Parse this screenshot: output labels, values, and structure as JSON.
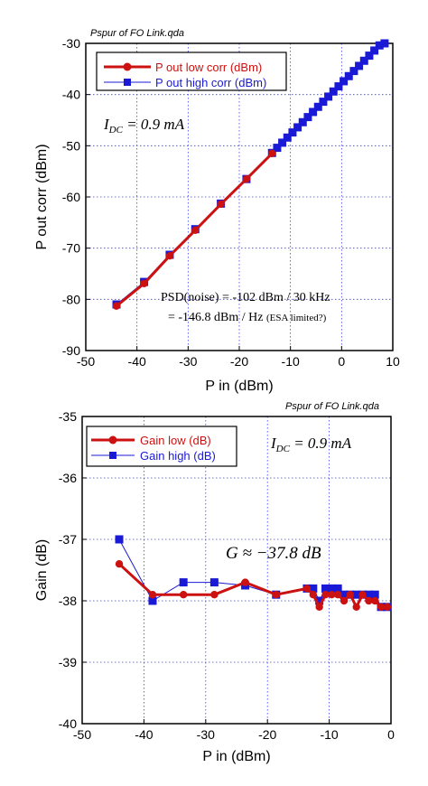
{
  "colors": {
    "low": "#cc1111",
    "high": "#1a1ad6",
    "grid": "#3a3aff"
  },
  "chart_data": [
    {
      "type": "line",
      "file_label": "Pspur of FO Link.qda",
      "xlabel": "P in (dBm)",
      "ylabel": "P out corr (dBm)",
      "xlim": [
        -50,
        10
      ],
      "ylim": [
        -90,
        -30
      ],
      "xticks": [
        -50,
        -40,
        -30,
        -20,
        -10,
        0,
        10
      ],
      "yticks": [
        -90,
        -80,
        -70,
        -60,
        -50,
        -40,
        -30
      ],
      "grid": true,
      "legend_position": "top-left",
      "series": [
        {
          "name": "P out low corr (dBm)",
          "color": "#cc1111",
          "marker": "circle",
          "x": [
            -44,
            -38.6,
            -33.6,
            -28.6,
            -23.6,
            -18.6,
            -13.6
          ],
          "y": [
            -81.3,
            -76.9,
            -71.5,
            -66.5,
            -61.4,
            -56.5,
            -51.5
          ]
        },
        {
          "name": "P out high corr (dBm)",
          "color": "#1a1ad6",
          "marker": "square",
          "x": [
            -44,
            -38.6,
            -33.6,
            -28.6,
            -23.6,
            -18.6,
            -13.6,
            -12.6,
            -11.6,
            -10.6,
            -9.6,
            -8.6,
            -7.6,
            -6.6,
            -5.6,
            -4.6,
            -3.6,
            -2.6,
            -1.6,
            -0.6,
            0.4,
            1.4,
            2.4,
            3.4,
            4.4,
            5.4,
            6.4,
            7.4,
            8.4
          ],
          "y": [
            -81.0,
            -76.6,
            -71.3,
            -66.3,
            -61.3,
            -56.5,
            -51.4,
            -50.4,
            -49.4,
            -48.4,
            -47.4,
            -46.4,
            -45.4,
            -44.4,
            -43.4,
            -42.4,
            -41.4,
            -40.4,
            -39.4,
            -38.4,
            -37.4,
            -36.4,
            -35.4,
            -34.4,
            -33.4,
            -32.4,
            -31.4,
            -30.4,
            -30.0
          ]
        }
      ],
      "annotations": {
        "idc_main": "I",
        "idc_sub": "DC",
        "idc_rest": " = 0.9  mA",
        "psd_line1": "PSD(noise) = -102 dBm / 30 kHz",
        "psd_line2_main": "= -146.8 dBm / Hz ",
        "psd_line2_note": "(ESA limited?)"
      }
    },
    {
      "type": "line",
      "file_label": "Pspur of FO Link.qda",
      "xlabel": "P in (dBm)",
      "ylabel": "Gain (dB)",
      "xlim": [
        -50,
        0
      ],
      "ylim": [
        -40,
        -35
      ],
      "xticks": [
        -50,
        -40,
        -30,
        -20,
        -10,
        0
      ],
      "yticks": [
        -40,
        -39,
        -38,
        -37,
        -36,
        -35
      ],
      "grid": true,
      "legend_position": "top-left",
      "series": [
        {
          "name": "Gain low (dB)",
          "color": "#cc1111",
          "marker": "circle",
          "x": [
            -44,
            -38.6,
            -33.6,
            -28.6,
            -23.6,
            -18.6,
            -13.6,
            -12.6,
            -11.6,
            -10.6,
            -9.6,
            -8.6,
            -7.6,
            -6.6,
            -5.6,
            -4.6,
            -3.6,
            -2.6,
            -1.6,
            -0.6
          ],
          "y": [
            -37.4,
            -37.9,
            -37.9,
            -37.9,
            -37.7,
            -37.9,
            -37.8,
            -37.9,
            -38.1,
            -37.9,
            -37.9,
            -37.9,
            -38.0,
            -37.9,
            -38.1,
            -37.9,
            -38.0,
            -38.0,
            -38.1,
            -38.1
          ]
        },
        {
          "name": "Gain high (dB)",
          "color": "#1a1ad6",
          "marker": "square",
          "x": [
            -44,
            -38.6,
            -33.6,
            -28.6,
            -23.6,
            -18.6,
            -13.6,
            -12.6,
            -11.6,
            -10.6,
            -9.6,
            -8.6,
            -7.6,
            -6.6,
            -5.6,
            -4.6,
            -3.6,
            -2.6,
            -1.6,
            -0.6
          ],
          "y": [
            -37.0,
            -38.0,
            -37.7,
            -37.7,
            -37.75,
            -37.9,
            -37.8,
            -37.8,
            -38.0,
            -37.8,
            -37.8,
            -37.8,
            -37.9,
            -37.9,
            -37.9,
            -37.9,
            -37.9,
            -37.9,
            -38.1,
            -38.1
          ]
        }
      ],
      "annotations": {
        "idc_main": "I",
        "idc_sub": "DC",
        "idc_rest": " = 0.9  mA",
        "gain_main": "G ≈ −37.8 ",
        "gain_unit": "dB"
      }
    }
  ]
}
